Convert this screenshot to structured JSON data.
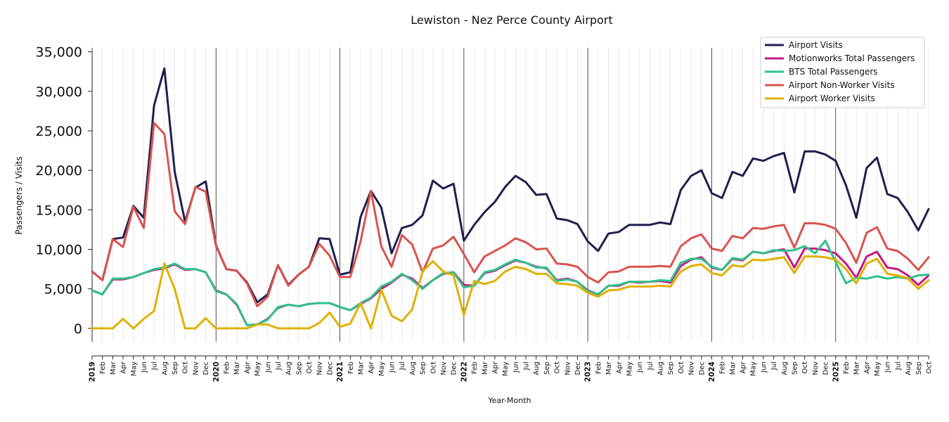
{
  "chart_data": {
    "type": "line",
    "title": "Lewiston - Nez Perce County Airport",
    "xlabel": "Year-Month",
    "ylabel": "Passengers / Visits",
    "ylim": [
      -1700,
      35500
    ],
    "yticks": [
      0,
      5000,
      10000,
      15000,
      20000,
      25000,
      30000,
      35000
    ],
    "ytick_labels": [
      "0",
      "5,000",
      "10,000",
      "15,000",
      "20,000",
      "25,000",
      "30,000",
      "35,000"
    ],
    "legend_position": "top-right",
    "start": "2019-01",
    "categories": [
      "2019-01",
      "2019-02",
      "2019-03",
      "2019-04",
      "2019-05",
      "2019-06",
      "2019-07",
      "2019-08",
      "2019-09",
      "2019-10",
      "2019-11",
      "2019-12",
      "2020-01",
      "2020-02",
      "2020-03",
      "2020-04",
      "2020-05",
      "2020-06",
      "2020-07",
      "2020-08",
      "2020-09",
      "2020-10",
      "2020-11",
      "2020-12",
      "2021-01",
      "2021-02",
      "2021-03",
      "2021-04",
      "2021-05",
      "2021-06",
      "2021-07",
      "2021-08",
      "2021-09",
      "2021-10",
      "2021-11",
      "2021-12",
      "2022-01",
      "2022-02",
      "2022-03",
      "2022-04",
      "2022-05",
      "2022-06",
      "2022-07",
      "2022-08",
      "2022-09",
      "2022-10",
      "2022-11",
      "2022-12",
      "2023-01",
      "2023-02",
      "2023-03",
      "2023-04",
      "2023-05",
      "2023-06",
      "2023-07",
      "2023-08",
      "2023-09",
      "2023-10",
      "2023-11",
      "2023-12",
      "2024-01",
      "2024-02",
      "2024-03",
      "2024-04",
      "2024-05",
      "2024-06",
      "2024-07",
      "2024-08",
      "2024-09",
      "2024-10",
      "2024-11",
      "2024-12",
      "2025-01",
      "2025-02",
      "2025-03",
      "2025-04",
      "2025-05",
      "2025-06",
      "2025-07",
      "2025-08",
      "2025-09",
      "2025-10"
    ],
    "years": [
      "2019",
      "2020",
      "2021",
      "2022",
      "2023",
      "2024",
      "2025"
    ],
    "month_labels": [
      "Feb",
      "Mar",
      "Apr",
      "May",
      "Jun",
      "Jul",
      "Aug",
      "Sep",
      "Oct",
      "Nov",
      "Dec"
    ],
    "series": [
      {
        "name": "Airport Visits",
        "color": "#1f1f4e",
        "values": [
          7200,
          6100,
          11300,
          11500,
          15500,
          14000,
          28200,
          32900,
          19800,
          13500,
          17800,
          18600,
          10500,
          7500,
          7300,
          5800,
          3300,
          4300,
          8000,
          5500,
          6800,
          7800,
          11400,
          11300,
          6800,
          7100,
          14100,
          17400,
          15300,
          9500,
          12700,
          13100,
          14300,
          18700,
          17700,
          18300,
          11100,
          13100,
          14700,
          16000,
          17900,
          19300,
          18500,
          16900,
          17000,
          13900,
          13700,
          13200,
          11000,
          9800,
          12000,
          12200,
          13100,
          13100,
          13100,
          13400,
          13200,
          17500,
          19300,
          20000,
          17100,
          16500,
          19800,
          19300,
          21500,
          21200,
          21800,
          22200,
          17200,
          22400,
          22400,
          22000,
          21200,
          18100,
          14000,
          20300,
          21600,
          17000,
          16500,
          14700,
          12400,
          15100
        ]
      },
      {
        "name": "Motionworks Total Passengers",
        "color": "#c71585",
        "values": [
          4800,
          4300,
          6200,
          6200,
          6500,
          7000,
          7400,
          7600,
          8100,
          7400,
          7500,
          7100,
          4800,
          4300,
          3000,
          400,
          500,
          1200,
          2600,
          3000,
          2800,
          3100,
          3200,
          3200,
          2700,
          2300,
          3100,
          3800,
          5000,
          5800,
          6800,
          6300,
          5100,
          6100,
          6900,
          7100,
          5500,
          5400,
          7000,
          7300,
          8000,
          8600,
          8300,
          7800,
          7600,
          6100,
          6300,
          5900,
          4800,
          4300,
          5400,
          5400,
          5900,
          5800,
          5900,
          6000,
          5800,
          7900,
          8700,
          9000,
          7700,
          7400,
          8800,
          8600,
          9700,
          9500,
          9800,
          10000,
          7700,
          10100,
          10100,
          9900,
          9500,
          8200,
          6400,
          9100,
          9700,
          7700,
          7500,
          6700,
          5500,
          6700
        ]
      },
      {
        "name": "BTS Total Passengers",
        "color": "#2ec28a",
        "values": [
          4800,
          4300,
          6300,
          6300,
          6500,
          7000,
          7500,
          7700,
          8200,
          7500,
          7500,
          7100,
          4700,
          4300,
          3100,
          400,
          500,
          1100,
          2700,
          3000,
          2800,
          3100,
          3200,
          3200,
          2700,
          2300,
          3200,
          3900,
          5300,
          5900,
          6900,
          6100,
          5000,
          6100,
          7000,
          7100,
          5200,
          5400,
          7100,
          7400,
          8100,
          8700,
          8300,
          7700,
          7700,
          6000,
          6200,
          5900,
          4700,
          4300,
          5400,
          5500,
          5900,
          5900,
          5900,
          6100,
          6000,
          8300,
          8800,
          8800,
          7800,
          7400,
          8900,
          8700,
          9700,
          9500,
          9900,
          9800,
          9900,
          10400,
          9500,
          11100,
          8400,
          5700,
          6400,
          6300,
          6600,
          6300,
          6500,
          6300,
          6700,
          6800
        ]
      },
      {
        "name": "Airport Non-Worker Visits",
        "color": "#d9534f",
        "values": [
          7200,
          6100,
          11300,
          10300,
          15400,
          12700,
          26000,
          24600,
          14800,
          13200,
          17900,
          17300,
          10400,
          7500,
          7300,
          5700,
          2800,
          4000,
          8000,
          5400,
          6800,
          7800,
          10700,
          9200,
          6500,
          6500,
          11000,
          17400,
          10400,
          7800,
          11800,
          10600,
          7100,
          10100,
          10500,
          11600,
          9400,
          7100,
          9100,
          9800,
          10500,
          11400,
          10900,
          10000,
          10100,
          8200,
          8100,
          7800,
          6500,
          5800,
          7100,
          7200,
          7800,
          7800,
          7800,
          7900,
          7800,
          10400,
          11400,
          11900,
          10100,
          9800,
          11700,
          11400,
          12700,
          12600,
          12900,
          13100,
          10200,
          13300,
          13300,
          13100,
          12600,
          10800,
          8300,
          12100,
          12800,
          10100,
          9800,
          8800,
          7400,
          9000
        ]
      },
      {
        "name": "Airport Worker Visits",
        "color": "#e0b000",
        "values": [
          0,
          0,
          0,
          1200,
          0,
          1200,
          2200,
          8200,
          5000,
          0,
          0,
          1300,
          0,
          0,
          0,
          0,
          500,
          500,
          0,
          0,
          0,
          0,
          700,
          2000,
          200,
          600,
          3200,
          0,
          4900,
          1600,
          900,
          2400,
          7200,
          8500,
          7200,
          6700,
          1700,
          6000,
          5600,
          6000,
          7200,
          7800,
          7500,
          6900,
          6900,
          5700,
          5600,
          5400,
          4500,
          4000,
          4800,
          4900,
          5300,
          5300,
          5300,
          5400,
          5300,
          7200,
          7900,
          8100,
          7000,
          6700,
          8000,
          7800,
          8700,
          8600,
          8800,
          9000,
          7000,
          9100,
          9100,
          9000,
          8700,
          7500,
          5700,
          8200,
          8800,
          6900,
          6700,
          6300,
          5000,
          6100
        ]
      }
    ]
  }
}
